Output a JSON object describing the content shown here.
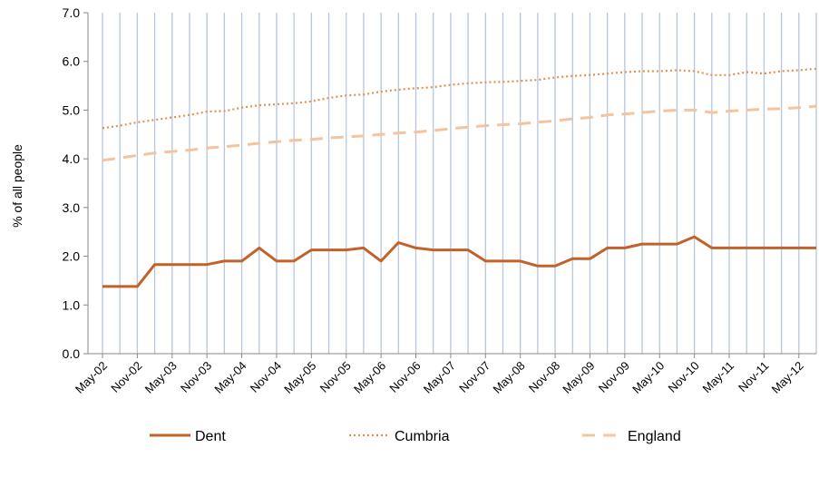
{
  "chart_data": {
    "type": "line",
    "ylabel": "% of all people",
    "xlabel": "",
    "ylim": [
      0,
      7
    ],
    "yticks": [
      "0.0",
      "1.0",
      "2.0",
      "3.0",
      "4.0",
      "5.0",
      "6.0",
      "7.0"
    ],
    "x_tick_labels": [
      "May-02",
      "Nov-02",
      "May-03",
      "Nov-03",
      "May-04",
      "Nov-04",
      "May-05",
      "Nov-05",
      "May-06",
      "Nov-06",
      "May-07",
      "Nov-07",
      "May-08",
      "Nov-08",
      "May-09",
      "Nov-09",
      "May-10",
      "Nov-10",
      "May-11",
      "Nov-11",
      "May-12"
    ],
    "x": [
      "May-02",
      "Aug-02",
      "Nov-02",
      "Feb-03",
      "May-03",
      "Aug-03",
      "Nov-03",
      "Feb-04",
      "May-04",
      "Aug-04",
      "Nov-04",
      "Feb-05",
      "May-05",
      "Aug-05",
      "Nov-05",
      "Feb-06",
      "May-06",
      "Aug-06",
      "Nov-06",
      "Feb-07",
      "May-07",
      "Aug-07",
      "Nov-07",
      "Feb-08",
      "May-08",
      "Aug-08",
      "Nov-08",
      "Feb-09",
      "May-09",
      "Aug-09",
      "Nov-09",
      "Feb-10",
      "May-10",
      "Aug-10",
      "Nov-10",
      "Feb-11",
      "May-11",
      "Aug-11",
      "Nov-11",
      "Feb-12",
      "May-12",
      "Aug-12"
    ],
    "grid": "vertical",
    "legend_position": "bottom",
    "series": [
      {
        "name": "Dent",
        "style": "solid",
        "color": "#C0622A",
        "values": [
          1.38,
          1.38,
          1.38,
          1.83,
          1.83,
          1.83,
          1.83,
          1.9,
          1.9,
          2.17,
          1.9,
          1.9,
          2.13,
          2.13,
          2.13,
          2.17,
          1.9,
          2.28,
          2.17,
          2.13,
          2.13,
          2.13,
          1.9,
          1.9,
          1.9,
          1.8,
          1.8,
          1.95,
          1.95,
          2.17,
          2.17,
          2.25,
          2.25,
          2.25,
          2.4,
          2.17,
          2.17,
          2.17,
          2.17,
          2.17,
          2.17,
          2.17
        ]
      },
      {
        "name": "Cumbria",
        "style": "dotted",
        "color": "#E3914B",
        "values": [
          4.63,
          4.68,
          4.75,
          4.8,
          4.85,
          4.9,
          4.97,
          4.98,
          5.05,
          5.1,
          5.12,
          5.14,
          5.18,
          5.25,
          5.3,
          5.32,
          5.38,
          5.42,
          5.45,
          5.47,
          5.52,
          5.55,
          5.57,
          5.58,
          5.6,
          5.62,
          5.67,
          5.7,
          5.72,
          5.75,
          5.78,
          5.8,
          5.8,
          5.82,
          5.8,
          5.72,
          5.72,
          5.78,
          5.75,
          5.8,
          5.82,
          5.85
        ]
      },
      {
        "name": "England",
        "style": "dashed",
        "color": "#F5C39C",
        "values": [
          3.97,
          4.02,
          4.07,
          4.12,
          4.15,
          4.18,
          4.22,
          4.25,
          4.28,
          4.32,
          4.35,
          4.38,
          4.4,
          4.43,
          4.45,
          4.47,
          4.5,
          4.53,
          4.55,
          4.58,
          4.62,
          4.65,
          4.68,
          4.7,
          4.72,
          4.75,
          4.78,
          4.82,
          4.85,
          4.9,
          4.92,
          4.95,
          4.98,
          5.0,
          5.0,
          4.95,
          4.98,
          5.0,
          5.02,
          5.03,
          5.05,
          5.08
        ]
      }
    ]
  }
}
